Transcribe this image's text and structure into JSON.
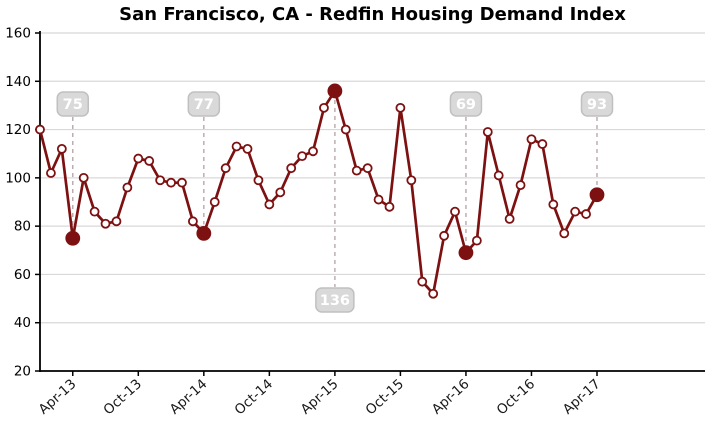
{
  "title": "San Francisco, CA - Redfin Housing Demand Index",
  "chart_data": {
    "type": "line",
    "title": "San Francisco, CA - Redfin Housing Demand Index",
    "xlabel": "",
    "ylabel": "",
    "ylim": [
      20,
      160
    ],
    "y_ticks": [
      20,
      40,
      60,
      80,
      100,
      120,
      140,
      160
    ],
    "grid": "horizontal",
    "legend": "none",
    "x": [
      "Jan-13",
      "Feb-13",
      "Mar-13",
      "Apr-13",
      "May-13",
      "Jun-13",
      "Jul-13",
      "Aug-13",
      "Sep-13",
      "Oct-13",
      "Nov-13",
      "Dec-13",
      "Jan-14",
      "Feb-14",
      "Mar-14",
      "Apr-14",
      "May-14",
      "Jun-14",
      "Jul-14",
      "Aug-14",
      "Sep-14",
      "Oct-14",
      "Nov-14",
      "Dec-14",
      "Jan-15",
      "Feb-15",
      "Mar-15",
      "Apr-15",
      "May-15",
      "Jun-15",
      "Jul-15",
      "Aug-15",
      "Sep-15",
      "Oct-15",
      "Nov-15",
      "Dec-15",
      "Jan-16",
      "Feb-16",
      "Mar-16",
      "Apr-16",
      "May-16",
      "Jun-16",
      "Jul-16",
      "Aug-16",
      "Sep-16",
      "Oct-16",
      "Nov-16",
      "Dec-16",
      "Jan-17",
      "Feb-17",
      "Mar-17",
      "Apr-17"
    ],
    "values": [
      120,
      102,
      112,
      75,
      100,
      86,
      81,
      82,
      96,
      108,
      107,
      99,
      98,
      98,
      82,
      77,
      90,
      104,
      113,
      112,
      99,
      89,
      94,
      104,
      109,
      111,
      129,
      136,
      120,
      103,
      104,
      91,
      88,
      129,
      99,
      57,
      52,
      76,
      86,
      69,
      74,
      119,
      101,
      83,
      97,
      116,
      114,
      89,
      77,
      86,
      85,
      93
    ],
    "x_ticks": [
      {
        "i": 3,
        "label": "Apr-13"
      },
      {
        "i": 9,
        "label": "Oct-13"
      },
      {
        "i": 15,
        "label": "Apr-14"
      },
      {
        "i": 21,
        "label": "Oct-14"
      },
      {
        "i": 27,
        "label": "Apr-15"
      },
      {
        "i": 33,
        "label": "Oct-15"
      },
      {
        "i": 39,
        "label": "Apr-16"
      },
      {
        "i": 45,
        "label": "Oct-16"
      },
      {
        "i": 51,
        "label": "Apr-17"
      }
    ],
    "highlights": [
      {
        "i": 3,
        "label": "75",
        "placement": "above"
      },
      {
        "i": 15,
        "label": "77",
        "placement": "above"
      },
      {
        "i": 27,
        "label": "136",
        "placement": "below"
      },
      {
        "i": 39,
        "label": "69",
        "placement": "above"
      },
      {
        "i": 51,
        "label": "93",
        "placement": "above"
      }
    ],
    "colors": {
      "line": "#7d1111",
      "marker_fill": "#ffffff",
      "highlight_fill": "#7d1111",
      "grid": "#d8d8d8",
      "axis": "#000000",
      "tick_label": "#1a1a1a",
      "callout_bg": "#d9d9d9",
      "callout_border": "#c0c0c0",
      "callout_text": "#ffffff",
      "callout_dash": "#b8a8a8"
    }
  }
}
